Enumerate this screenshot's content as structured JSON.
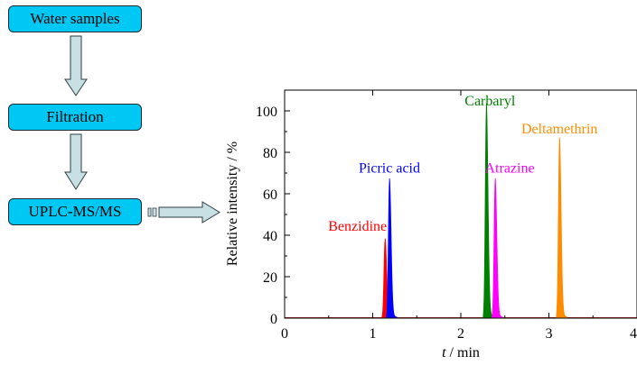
{
  "flowchart": {
    "steps": [
      {
        "label": "Water samples"
      },
      {
        "label": "Filtration"
      },
      {
        "label": "UPLC-MS/MS"
      }
    ],
    "arrow_fill": "#c8dfe3",
    "box_fill": "#00c8f5"
  },
  "chart_data": {
    "type": "line",
    "title": "",
    "xlabel_italic": "t",
    "xlabel_rest": " / min",
    "ylabel": "Relative intensity / %",
    "xlim": [
      0,
      4
    ],
    "ylim": [
      0,
      110
    ],
    "xticks": [
      0,
      1,
      2,
      3,
      4
    ],
    "yticks": [
      0,
      20,
      40,
      60,
      80,
      100
    ],
    "grid": false,
    "series": [
      {
        "name": "Benzidine",
        "color": "#ff0000",
        "peak_x": 1.14,
        "peak_y": 37
      },
      {
        "name": "Picric acid",
        "color": "#0000ff",
        "peak_x": 1.19,
        "peak_y": 65
      },
      {
        "name": "Carbaryl",
        "color": "#008000",
        "peak_x": 2.29,
        "peak_y": 100
      },
      {
        "name": "Atrazine",
        "color": "#ff00ff",
        "peak_x": 2.39,
        "peak_y": 65
      },
      {
        "name": "Deltamethrin",
        "color": "#ff8c00",
        "peak_x": 3.12,
        "peak_y": 84
      }
    ]
  }
}
